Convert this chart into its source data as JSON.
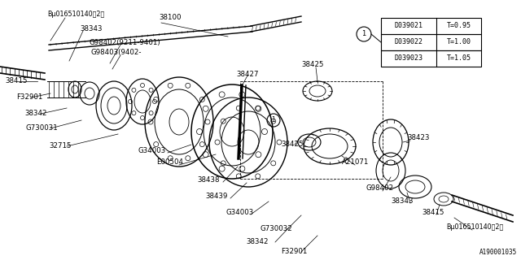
{
  "fig_width": 6.4,
  "fig_height": 3.2,
  "dpi": 100,
  "bg": "#ffffff",
  "lc": "#000000",
  "table_rows": [
    [
      "D039021",
      "T=0.95"
    ],
    [
      "D039022",
      "T=1.00"
    ],
    [
      "D039023",
      "T=1.05"
    ]
  ],
  "watermark": "A190001035"
}
